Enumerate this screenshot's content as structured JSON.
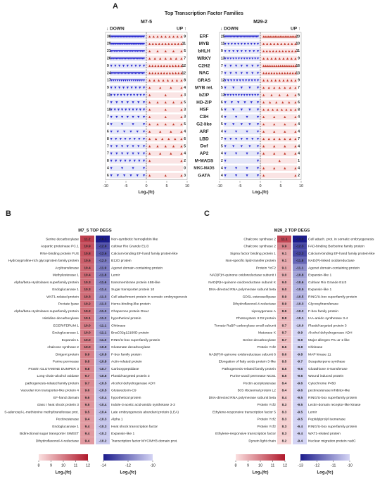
{
  "panel_a": {
    "label": "A",
    "title": "Top Transcription Factor Families",
    "down_label": "↓ DOWN",
    "up_label": "UP ↑",
    "x_label": "Log₂(fc)",
    "xlim": [
      -10,
      10
    ],
    "xticks": [
      -10,
      -5,
      0,
      5,
      10
    ],
    "families": [
      "ERF",
      "MYB",
      "bHLH",
      "WRKY",
      "C2H2",
      "NAC",
      "GRAS",
      "MYB rel.",
      "bZIP",
      "HD-ZIP",
      "HSF",
      "C3H",
      "G2-like",
      "ARF",
      "LBD",
      "Dof",
      "AP2",
      "M-MADS",
      "MIKC-MADS",
      "GATA"
    ],
    "samples": [
      {
        "name": "M7-5",
        "down_color": "#2b2bd0",
        "up_color": "#c0392b",
        "down": [
          36,
          29,
          21,
          26,
          9,
          24,
          17,
          9,
          11,
          7,
          10,
          7,
          4,
          6,
          8,
          7,
          7,
          8,
          4,
          6
        ],
        "up": [
          9,
          11,
          5,
          7,
          12,
          12,
          8,
          4,
          3,
          5,
          3,
          3,
          5,
          4,
          6,
          5,
          4,
          2,
          0,
          3
        ]
      },
      {
        "name": "M29-2",
        "down_color": "#2b2bd0",
        "up_color": "#c0392b",
        "down": [
          25,
          11,
          9,
          13,
          7,
          7,
          12,
          5,
          13,
          6,
          5,
          4,
          5,
          4,
          7,
          5,
          4,
          2,
          4,
          4
        ],
        "up": [
          20,
          10,
          11,
          9,
          16,
          13,
          9,
          7,
          5,
          6,
          8,
          4,
          4,
          4,
          7,
          4,
          4,
          1,
          4,
          2
        ]
      }
    ]
  },
  "panel_b": {
    "label": "B",
    "title": "M7_5 TOP DEGS",
    "scale_label": "Log₂(fc)",
    "up_genes": [
      "Serine decarboxylase",
      "Aspartic proteinase PC.1",
      "RNA-binding protein FUS",
      "Hydroxyproline-rich glycoprotein family protein",
      "Acyltransferase",
      "Methylesterase 1",
      "Alpha/beta-Hydrolases superfamily protein",
      "Endoglucanase 1",
      "WAT1-related protein",
      "Pectate lyase",
      "Alpha/beta-Hydrolases superfamily protein",
      "Histidine decarboxylase",
      "ECERIFERUM 1",
      "Endoglucanase 1",
      "Expansin 1",
      "chalcone synthase 2",
      "Dirigent protein",
      "Purine permease",
      "Protein GLUTAMINE DUMPER 3",
      "Long-chain-alcohol oxidase",
      "pathogenesis-related family protein",
      "Vacuolar iron transporter-like protein 4",
      "EF-hand domain",
      "class I heat shock protein 3",
      "S-adenosyl-L-methionine methyltransferase prot.",
      "Pectinesterase",
      "Endoglucanase 1",
      "Bidirectional sugar transporter SWEET",
      "Dihydroflavonol-4-reductase"
    ],
    "up_values": [
      11.2,
      10.9,
      10.8,
      10.6,
      10.4,
      10.4,
      10.3,
      10.3,
      10.3,
      10.2,
      10.2,
      10.1,
      10,
      10,
      10,
      10,
      9.9,
      9.8,
      9.8,
      9.7,
      9.7,
      9.6,
      9.6,
      9.5,
      9.5,
      9.4,
      9.4,
      9.4,
      9.4
    ],
    "up_value_labels": [
      "11.2",
      "10.9",
      "10.8",
      "10.6",
      "10.4",
      "10.4",
      "10.3",
      "10.3",
      "10.3",
      "10.2",
      "10.2",
      "10.1",
      "10.0",
      "10.0",
      "10.0",
      "10.0",
      "9.9",
      "9.8",
      "9.8",
      "9.7",
      "9.7",
      "9.6",
      "9.6",
      "9.5",
      "9.5",
      "9.4",
      "9.4",
      "9.4",
      "9.4"
    ],
    "down_genes": [
      "Non-symbiotic hemoglobin like",
      "cultivar Rio Grande ELI3",
      "Calcium-binding EF-hand family protein-like",
      "B12D protein",
      "Agenet domain-containing protein",
      "Lemir",
      "transmembrane protein 45B-like",
      "Sugar transporter protein 10",
      "Cell attachment protein in somatic embryogenesis",
      "Heme-binding-like protein",
      "Chaperone protein DnaJ",
      "hypothetical protein",
      "Chitinase",
      "BnaC02g12160D protein",
      "RING/U-box superfamily protein",
      "Glutamate decarboxylase",
      "F-box family protein",
      "Actin-related protein",
      "Carboxypeptidase",
      "Plastid-targeted protein 3",
      "Alcohol dehydrogenase ADH",
      "Glutaredoxin-C9",
      "hypothetical protein",
      "Indole-3-acetic acid-amido synthetase 3-3",
      "Late embryogenesis abundant protein (LEA)",
      "Alpha 1",
      "Heat shock transcription factor",
      "Expansin-like  1",
      "Transcription factor MYC/MYB domain prot."
    ],
    "down_values": [
      -16.1,
      -12.9,
      -12.6,
      -12,
      -11.9,
      -11.8,
      -11.6,
      -11.4,
      -11.3,
      -11.3,
      -11.3,
      -11.2,
      -11.1,
      -11.1,
      -11,
      -10.9,
      -10.8,
      -10.8,
      -10.7,
      -10.6,
      -10.5,
      -10.5,
      -10.4,
      -10.4,
      -10.4,
      -10.3,
      -10.3,
      -10.2,
      -10.2
    ],
    "down_value_labels": [
      "-16.1",
      "-12.9",
      "-12.6",
      "-12.0",
      "-11.9",
      "-11.8",
      "-11.6",
      "-11.4",
      "-11.3",
      "-11.3",
      "-11.3",
      "-11.2",
      "-11.1",
      "-11.1",
      "-11.0",
      "-10.9",
      "-10.8",
      "-10.8",
      "-10.7",
      "-10.6",
      "-10.5",
      "-10.5",
      "-10.4",
      "-10.4",
      "-10.4",
      "-10.3",
      "-10.3",
      "-10.2",
      "-10.2"
    ],
    "up_scale": {
      "ticks": [
        8,
        9,
        10,
        11,
        12
      ],
      "colors": [
        "#fbe0e0",
        "#b0182b"
      ]
    },
    "down_scale": {
      "ticks": [
        -14,
        -12,
        -10
      ],
      "colors": [
        "#1c1c8c",
        "#d4d4f4"
      ]
    }
  },
  "panel_c": {
    "label": "C",
    "title": "M29_2 TOP DEGS",
    "scale_label": "Log₂(fc)",
    "up_genes": [
      "Chalcone synthase 2",
      "Chalcone synthase 2",
      "Sigma factor binding protein 1",
      "Non-specific lipid-transfer protein",
      "Protein YcF2",
      "NAD(P)H-quinone oxidoreductase subunit I",
      "NAD(P)H-quinone oxidoreductase subunit K",
      "DNA-directed RNA polymerase subunit beta",
      "GDSL esterase/lipase",
      "Dihydroflavonol-4-reductase",
      "Lipoxygenase A",
      "Photosystem II D2 protein",
      "Tomato RuBP carboxylase small subunit",
      "Maturase K",
      "Serine decarboxylase",
      "Protein Ycf2",
      "NAD(P)H-quinone oxidoreductase subunit 6",
      "Elongation of fatty acids protein 3-like",
      "Pathogenesis-related family protein",
      "Purine-uracil permease NCS1",
      "Pectin acetylesterase",
      "50S ribosomal protein L2",
      "DNA-directed RNA polymerase subunit beta",
      "Protein Ycf2",
      "Ethylene-responsive transcription factor 5",
      "Protein Ycf2",
      "Protein Ycf2",
      "Ethylene-responsive transcription factor",
      "Dynein light chain"
    ],
    "up_values": [
      11.1,
      9.9,
      9.1,
      9.1,
      9.1,
      9,
      9,
      9,
      8.9,
      8.9,
      8.9,
      8.8,
      8.7,
      8.7,
      8.7,
      8.6,
      8.6,
      8.5,
      8.5,
      8.5,
      8.4,
      8.4,
      8.4,
      8.3,
      8.3,
      8.3,
      8.3,
      8.3,
      8.2
    ],
    "up_value_labels": [
      "11.1",
      "9.9",
      "9.1",
      "9.1",
      "9.1",
      "9.0",
      "9.0",
      "9.0",
      "8.9",
      "8.9",
      "8.9",
      "8.8",
      "8.7",
      "8.7",
      "8.7",
      "8.6",
      "8.6",
      "8.5",
      "8.5",
      "8.5",
      "8.4",
      "8.4",
      "8.4",
      "8.3",
      "8.3",
      "8.3",
      "8.3",
      "8.3",
      "8.2"
    ],
    "down_genes": [
      "Cell attach. prot. in somatic embryogenesis",
      "FAD-binding Berberine family protein",
      "Calcium-binding EF-hand family protein-like",
      "NAD(P)-linked oxidoreductase",
      "Agenet domain-containing protein",
      "Expansin-like  1",
      "Cultivar Rio Grande ELI3",
      "Expansin-like  1",
      "RING/U-box superfamily protein",
      "Glycosyltransferase",
      "F-box family protein",
      "IAA-amido synthetase 3-4",
      "Plastid-targeted protein 3",
      "Alcohol dehydrogenase ADH",
      "Major allergen Pru ar 1-like",
      "Chitinase",
      "MAP kinase 11",
      "Sesquiterpene synthase",
      "Glutathione S-transferase",
      "Wound induced protein",
      "Cytochrome P450",
      "pectinesterase inhibitor-like",
      "RING/U-box superfamily protein",
      "Lectin-domain receptor-like kinase",
      "Lemir",
      "Peptidylprolyl isomerase",
      "RING/U-box superfamily protein",
      "WAT1-related protein",
      "Nuclear migration protein nudC"
    ],
    "down_values": [
      -13,
      -12.3,
      -12.3,
      -11.8,
      -11.1,
      -10.8,
      -10.6,
      -10.5,
      -10.5,
      -10.3,
      -10.2,
      -10.1,
      -10,
      -9.9,
      -9.9,
      -9.8,
      -9.8,
      -9.7,
      -9.6,
      -9.6,
      -9.6,
      -9.6,
      -9.5,
      -9.5,
      -9.5,
      -9.5,
      -9.4,
      -9.4,
      -9.4
    ],
    "down_value_labels": [
      "-13.0",
      "-12.3",
      "-12.3",
      "-11.8",
      "-11.1",
      "-10.8",
      "-10.6",
      "-10.5",
      "-10.5",
      "-10.3",
      "-10.2",
      "-10.1",
      "-10.0",
      "-9.9",
      "-9.9",
      "-9.8",
      "-9.8",
      "-9.7",
      "-9.6",
      "-9.6",
      "-9.6",
      "-9.6",
      "-9.5",
      "-9.5",
      "-9.5",
      "-9.5",
      "-9.4",
      "-9.4",
      "-9.4"
    ],
    "up_scale": {
      "ticks": [
        8,
        9,
        10,
        11,
        12
      ],
      "colors": [
        "#fbe0e0",
        "#b0182b"
      ]
    },
    "down_scale": {
      "ticks": [
        -13,
        -12,
        -11,
        -10
      ],
      "colors": [
        "#1c1c8c",
        "#d4d4f4"
      ]
    }
  }
}
